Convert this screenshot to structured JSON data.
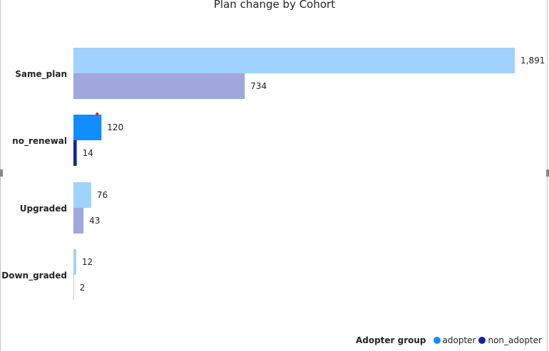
{
  "chart_data": {
    "type": "bar",
    "orientation": "horizontal",
    "title": "Plan change by Cohort",
    "categories": [
      "Same_plan",
      "no_renewal",
      "Upgraded",
      "Down_graded"
    ],
    "series": [
      {
        "name": "adopter",
        "values": [
          1891,
          120,
          76,
          12
        ],
        "labels": [
          "1,891",
          "120",
          "76",
          "12"
        ]
      },
      {
        "name": "non_adopter",
        "values": [
          734,
          14,
          43,
          2
        ],
        "labels": [
          "734",
          "14",
          "43",
          "2"
        ]
      }
    ],
    "highlighted_category": "no_renewal",
    "xlabel": "",
    "ylabel": "",
    "grid": false,
    "legend_position": "bottom-right",
    "legend_title": "Adopter group"
  },
  "colors": {
    "adopter": "#118dff",
    "non_adopter": "#12239e",
    "adopter_dim": "#a0d1ff",
    "non_adopter_dim": "#a0a7da",
    "marker": "#e81123"
  }
}
